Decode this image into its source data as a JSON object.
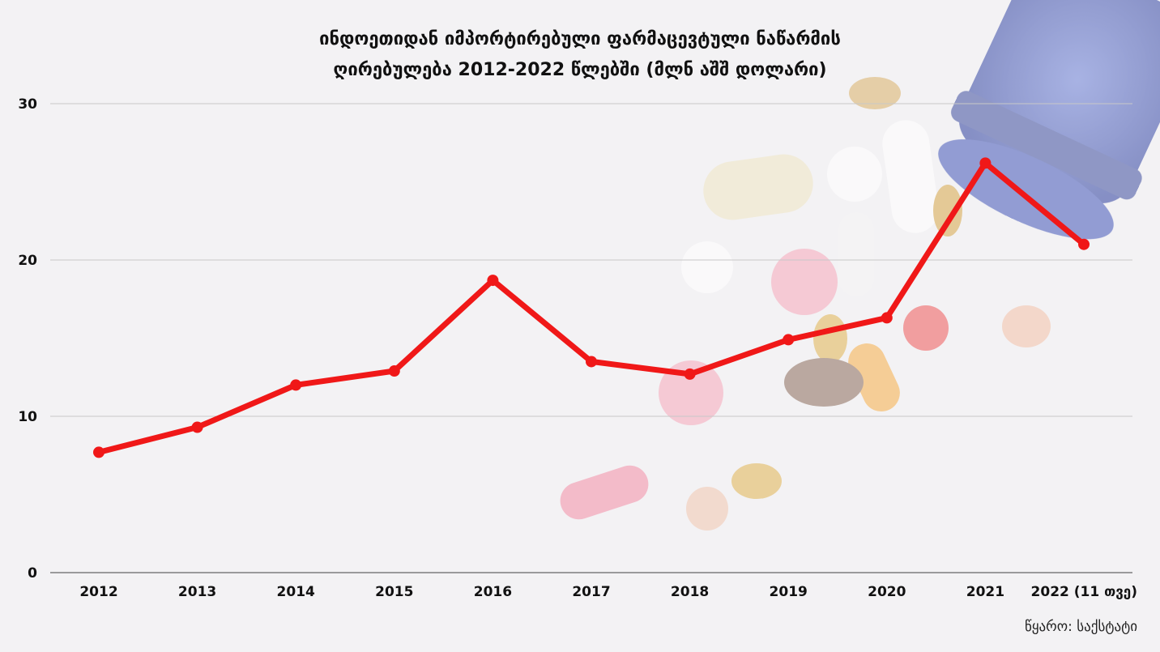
{
  "chart_data": {
    "type": "line",
    "title_line1": "ინდოეთიდან იმპორტირებული ფარმაცევტული ნაწარმის",
    "title_line2": "ღირებულება 2012-2022 წლებში (მლნ აშშ დოლარი)",
    "categories": [
      "2012",
      "2013",
      "2014",
      "2015",
      "2016",
      "2017",
      "2018",
      "2019",
      "2020",
      "2021",
      "2022 (11 თვე)"
    ],
    "values": [
      7.7,
      9.3,
      12.0,
      12.9,
      18.7,
      13.5,
      12.7,
      14.9,
      16.3,
      26.2,
      21.0
    ],
    "yticks": [
      0,
      10,
      20,
      30
    ],
    "ylim": [
      0,
      30
    ],
    "grid": true,
    "line_color": "#f01818",
    "source": "წყარო: საქსტატი"
  }
}
